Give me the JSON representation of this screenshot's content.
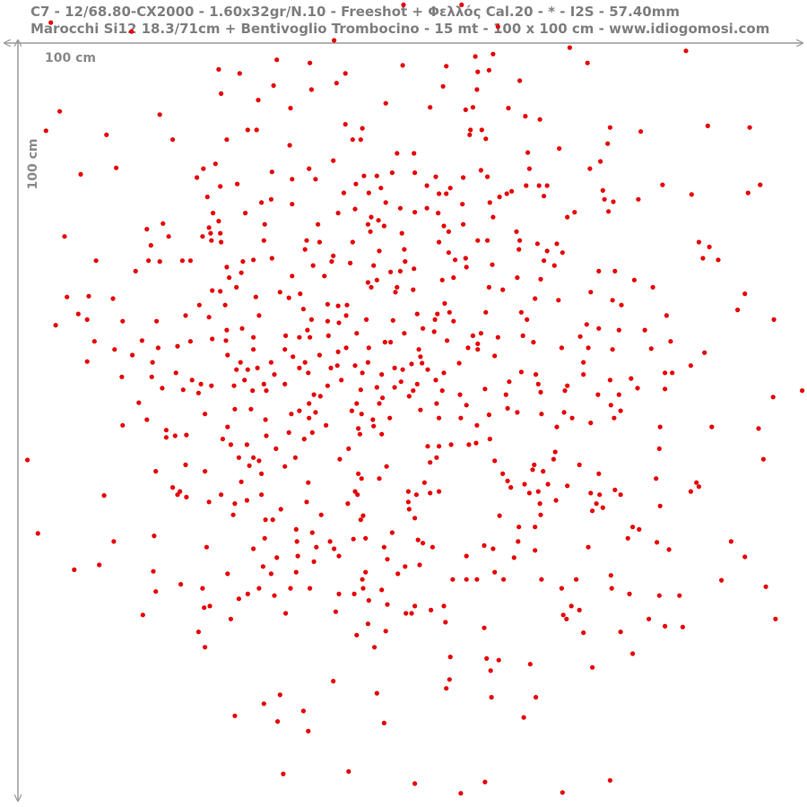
{
  "chart_data": {
    "type": "scatter",
    "title": "C7 - 12/68.80-CX2000 - 1.60x32gr/N.10 - Freeshot + Φελλός Cal.20 - * - I2S - 57.40mm",
    "subtitle": "Marocchi Si12 18.3/71cm + Bentivoglio Trombocino - 15 mt - 100 x 100 cm - www.idiogomosi.com",
    "x_label": "100 cm",
    "y_label": "100 cm",
    "xlim": [
      0,
      100
    ],
    "ylim": [
      100,
      0
    ],
    "color": "#e60000",
    "x": [
      50.0,
      57.2,
      6.3,
      16.3,
      61.7,
      41.4,
      70.6,
      85,
      58.9,
      61.1,
      34.3,
      38.4,
      49.9,
      55.3,
      72.8,
      27.1,
      29.7,
      42.8,
      59.2,
      60.6,
      41.7,
      54.9,
      64.4,
      33.9,
      27.4,
      38.6,
      59.1,
      32,
      47.8,
      36,
      57.7,
      58.6,
      63,
      7.4,
      19.8,
      53.3,
      65.1,
      66.9,
      42.8,
      58.3,
      59.7,
      75.6,
      87.7,
      92.9,
      5.7,
      30.7,
      31.8,
      44.9,
      13.2,
      21.4,
      28.1,
      43.7,
      44.7,
      79.4,
      58.2,
      60.2,
      35.9,
      75.3,
      69.3,
      49.2,
      51.3,
      41.3,
      65.4,
      26.7,
      25.2,
      14.4,
      38.3,
      65.6,
      73.1,
      74.4,
      33.7,
      48.6,
      51.4,
      10,
      45.1,
      46.7,
      59.6,
      24.4,
      54,
      57.4,
      60.4,
      36.2,
      39.1,
      44.1,
      52.9,
      65.2,
      66.8,
      67.8,
      82.1,
      94.2,
      29.4,
      92.7,
      27.3,
      55.8,
      47.2,
      85.7,
      74.7,
      63.4,
      42.6,
      45.7,
      54.4,
      55.3,
      33.6,
      25.7,
      61.9,
      62.8,
      67.4,
      74.9,
      76,
      79.1,
      32.4,
      36.2,
      47.8,
      57.3,
      60.7,
      52.9,
      49.6,
      44,
      41.9,
      51.4,
      54.3,
      71.2,
      75.4,
      26.4,
      30.4,
      46,
      46.9,
      61.1,
      70.3,
      20.2,
      27.1,
      25.9,
      18.2,
      26.1,
      27.3,
      32.8,
      45.6,
      47.6,
      55,
      57.4,
      39.4,
      64,
      49.8,
      55.6,
      45.9,
      8,
      20.9,
      25.1,
      26.2,
      27.4,
      32.7,
      38,
      39.6,
      54.4,
      59.2,
      60.4,
      64.4,
      66.6,
      69,
      86.6,
      87.9,
      18.7,
      43.7,
      50.1,
      64.3,
      67.8,
      69.7,
      37.8,
      41.3,
      47,
      55.6,
      56.4,
      57.7,
      33.7,
      87.1,
      89,
      11.9,
      18.4,
      19.8,
      22.6,
      23.6,
      30.1,
      31.4,
      41.1,
      43.4,
      46.3,
      50.2,
      51.3,
      57.8,
      61,
      67.4,
      68.7,
      28.1,
      38.8,
      16.8,
      29.9,
      48.4,
      49.6,
      74.2,
      76.2,
      28.4,
      36.2,
      40.2,
      46.7,
      45.6,
      54.8,
      56.2,
      64.1,
      67,
      78.6,
      80.9,
      46,
      29.3,
      26.3,
      27.3,
      34.7,
      49.2,
      49,
      51.2,
      60.6,
      62.3,
      73.2,
      92.3,
      8.3,
      11,
      14,
      31.7,
      35.8,
      37.2,
      40.6,
      41.9,
      55.1,
      66.3,
      69.2,
      75.9,
      24.7,
      27.9,
      43,
      77,
      91.4,
      9.7,
      10.8,
      37.6,
      42.9,
      51.7,
      54.2,
      55.7,
      60.2,
      64.6,
      82.6,
      23,
      25.9,
      32.1,
      38.6,
      40.6,
      42,
      45.4,
      48.7,
      53.9,
      56.2,
      65.3,
      95.9,
      6.9,
      15.2,
      19.4,
      72.7,
      74.2,
      76.7,
      79.9,
      28.1,
      30,
      52.4,
      53.8,
      38.1,
      35.4,
      37.1,
      40.7,
      44.2,
      50.1,
      58.6,
      59.6,
      61.7,
      64.8,
      71.9,
      31.4,
      11.7,
      17.6,
      23.6,
      26.3,
      28,
      38.4,
      47.7,
      48.4,
      55.4,
      59.2,
      66.1,
      83.1,
      14.2,
      19.6,
      22,
      31.4,
      35.3,
      42.9,
      45.7,
      51.9,
      58,
      59.2,
      69.6,
      72.9,
      75.9,
      80.7,
      87.3,
      16.4,
      28.2,
      36.3,
      39.6,
      41.9,
      52.1,
      61.3,
      10.8,
      18.9,
      29.8,
      33.6,
      37.8,
      41,
      45.6,
      51,
      52.3,
      56.9,
      72.3,
      37.1,
      41.8,
      44,
      48.9,
      49.9,
      29.3,
      30.7,
      31.9,
      53,
      85.6,
      64.6,
      21.8,
      34,
      38.2,
      44.9,
      47.3,
      55,
      66.4,
      72.3,
      82.4,
      83.3,
      15.1,
      18.8,
      23.8,
      24.9,
      30.3,
      32.7,
      42.3,
      49.7,
      51.7,
      54,
      63.1,
      66.7,
      75.6,
      78.2,
      20.1,
      22.7,
      26.2,
      29,
      31.3,
      33,
      35.3,
      40.6,
      44.7,
      46.7,
      48.9,
      51.2,
      54.8,
      60.1,
      70.3,
      70,
      79,
      82.4,
      99.4,
      24.6,
      38.9,
      39.7,
      47.4,
      50.7,
      57,
      62.7,
      67,
      74.1,
      76.7,
      95.8,
      17.2,
      38.3,
      44.2,
      47,
      54.1,
      57.8,
      62.9,
      75.7,
      29.1,
      31.1,
      37.1,
      39.1,
      43.6,
      52.1,
      69.9,
      76.9,
      18.2,
      25.4,
      36.1,
      44.8,
      64.1,
      67.1,
      76.1,
      32.9,
      38.3,
      46.2,
      48.3,
      54.4,
      57.1,
      60.6,
      70.9,
      73.2,
      15.2,
      28.2,
      40.4,
      46.3,
      44.4,
      59.1,
      69,
      81.8,
      88.2,
      94,
      35.8,
      38.7,
      44.6,
      47.3,
      20.6,
      20.6,
      23.1,
      21.7,
      33,
      27.6,
      60.7,
      59,
      58.1,
      37.7,
      28.6,
      30.6,
      53,
      54.4,
      55.9,
      43.2,
      81.7,
      68.8,
      34.2,
      3.4,
      94.6,
      29.6,
      31.4,
      32.1,
      36.6,
      42.1,
      54.1,
      61.3,
      23,
      30.9,
      35.3,
      47.9,
      53.3,
      66.2,
      68.6,
      71.8,
      19.3,
      25.4,
      32.4,
      44.4,
      62.3,
      66,
      67.3,
      74.2,
      44.8,
      47,
      62.9,
      81.3,
      86.3,
      29.9,
      38.2,
      52.6,
      65,
      67.9,
      86.6,
      21.4,
      63.3,
      70.3,
      76.2,
      12.9,
      22.3,
      22,
      23.1,
      27.4,
      32.4,
      44,
      44.3,
      50.6,
      51.6,
      53.3,
      54.4,
      65.6,
      66.7,
      73.2,
      74.3,
      76.9,
      85.6,
      25.9,
      29.1,
      30.6,
      38,
      43.1,
      50.6,
      68.9,
      73.9,
      66.9,
      74.7,
      73.4,
      81.8,
      50.7,
      34.8,
      28.9,
      39.8,
      45,
      51.4,
      61.9,
      67,
      32.9,
      33.8,
      44.7,
      64.3,
      66.3,
      78.4,
      79.2,
      4.7,
      36.7,
      38.7,
      48.6,
      77.8,
      14.1,
      19.1,
      32.8,
      36.8,
      40.9,
      43.8,
      45.3,
      51.8,
      52.4,
      53.6,
      60,
      64.2,
      81.4,
      90.6,
      25.6,
      31.4,
      39.2,
      41.4,
      47.6,
      61.1,
      66.3,
      72.9,
      82.9,
      34.3,
      36.9,
      38.9,
      42,
      48,
      57.8,
      63.7,
      92.3,
      9.2,
      12.3,
      32.6,
      45.3,
      50.2,
      52,
      61.3,
      19,
      28.2,
      33.6,
      36.7,
      44.9,
      49.3,
      56.1,
      57.8,
      59.1,
      62.4,
      67.1,
      71.4,
      75.7,
      89.4,
      22.4,
      25.1,
      36,
      38.4,
      42,
      43.9,
      45,
      47.3,
      69.6,
      75.8,
      94.9,
      19.3,
      30.7,
      32.1,
      78,
      81.7,
      84.2,
      29.6,
      34,
      45.7,
      48,
      51.4,
      53.4,
      55,
      70.8,
      26,
      25.3,
      71.8,
      35.4,
      41.6,
      50.3,
      51,
      69.8,
      70.2,
      80.4,
      28.6,
      17.7,
      96.1,
      45.6,
      55.2,
      82.4,
      84.6,
      60,
      24.6,
      44.2,
      47.8,
      72.3,
      76.9,
      25.4,
      46.4,
      78.4,
      55.8,
      60.3,
      61.8,
      65.7,
      60.8,
      73.4,
      41.3,
      55.7,
      55.3,
      46.7,
      34.7,
      60.9,
      66.4,
      32.7,
      37.6,
      29.1,
      64.9,
      34.4,
      47.6,
      38.2,
      43.2,
      35.1,
      75.6,
      51.4,
      60.1,
      57.1,
      69.7
    ],
    "values": [
      0.6,
      0.6,
      2.8,
      3.9,
      3.3,
      5.0,
      5.9,
      6.3,
      7.0,
      6.7,
      7.4,
      7.8,
      8.1,
      8.2,
      7.8,
      8.6,
      9.1,
      9.1,
      8.9,
      8.7,
      10.3,
      10.7,
      10,
      10.6,
      11.6,
      11.1,
      11.1,
      12.4,
      12.8,
      13.4,
      13.6,
      13.3,
      13.4,
      13.8,
      14.2,
      13.3,
      14.4,
      14.8,
      15.4,
      16.1,
      16.1,
      15.8,
      15.6,
      15.8,
      16.2,
      16.1,
      16.1,
      15.9,
      16.7,
      17.3,
      17.3,
      17.3,
      17.3,
      16.3,
      16.7,
      17.2,
      18,
      17.8,
      18.4,
      19,
      19,
      19.9,
      18.9,
      20.3,
      20.9,
      20.8,
      20.9,
      20.9,
      20.9,
      20,
      21.3,
      21.4,
      21.4,
      21.6,
      21.8,
      21.8,
      21.1,
      22,
      21.9,
      22,
      21.9,
      22.2,
      22.2,
      22.8,
      23,
      23,
      23,
      23,
      22.9,
      22.9,
      22.8,
      23.9,
      23.1,
      23.3,
      23.3,
      24.1,
      23.6,
      23.7,
      23.9,
      23.9,
      24,
      24,
      24.7,
      24.4,
      24.4,
      24,
      24.3,
      24.7,
      25,
      24.7,
      25.1,
      25.3,
      25.1,
      25.3,
      25.1,
      25.8,
      25.8,
      25.9,
      26.4,
      26.3,
      26.4,
      26.3,
      26.2,
      26.4,
      26.4,
      26.9,
      27.3,
      26.9,
      26.9,
      27.7,
      27.4,
      28.2,
      28.4,
      28.9,
      28.9,
      27.8,
      27.8,
      28,
      28,
      27.8,
      27.8,
      28.7,
      28.9,
      28.7,
      28.7,
      29.3,
      29.3,
      29.3,
      29.8,
      30,
      29.8,
      29.8,
      30,
      30,
      29.8,
      29.8,
      29.8,
      30.2,
      30.2,
      30,
      30.6,
      30.4,
      30,
      30.9,
      30.9,
      31.1,
      31.3,
      30.9,
      31.7,
      31.1,
      31.3,
      32.2,
      32,
      32,
      32,
      32.2,
      32.3,
      32.3,
      32.4,
      32.3,
      32.3,
      32.4,
      32.2,
      32.4,
      32.6,
      32.9,
      32.4,
      33.3,
      33.1,
      32.8,
      32.3,
      32.9,
      33.1,
      32.9,
      33.6,
      33.8,
      33.7,
      33.6,
      33.6,
      33.6,
      34.4,
      34.2,
      34.2,
      34.7,
      35,
      34.7,
      34.4,
      34.4,
      34.6,
      34.7,
      35.6,
      35.6,
      35.6,
      36,
      36.1,
      36.2,
      35.6,
      36.2,
      35.9,
      35.6,
      35.9,
      36.2,
      36.4,
      36.8,
      36.7,
      37,
      36.8,
      36.9,
      36.4,
      37.7,
      37.9,
      37.6,
      37,
      37.2,
      37.2,
      37.8,
      37.8,
      37.8,
      37.8,
      38.4,
      38.9,
      39.6,
      38.3,
      39.1,
      38.9,
      38.9,
      38.7,
      38.7,
      38.7,
      39.1,
      39.1,
      39.3,
      39.1,
      39.6,
      39.8,
      40,
      39.6,
      39.7,
      39.6,
      39.8,
      39.6,
      39.6,
      40.3,
      39.8,
      39.8,
      40.2,
      40.7,
      40.9,
      40.9,
      40.9,
      40.7,
      40.7,
      41.1,
      40.9,
      41.6,
      41.8,
      41.6,
      41.3,
      41.3,
      41.6,
      41.3,
      41.8,
      41.6,
      41.7,
      41.8,
      42.3,
      42.2,
      42.3,
      42,
      42.2,
      41.8,
      42.4,
      42.4,
      42.2,
      42.6,
      42.4,
      42.3,
      43.3,
      43.1,
      42.9,
      43.3,
      43.3,
      43.1,
      43.1,
      43.3,
      43.1,
      43.3,
      43.1,
      43.1,
      43.3,
      43.2,
      43.7,
      44,
      44,
      44.2,
      44,
      43.6,
      44.2,
      44.1,
      44.8,
      44.9,
      44.9,
      44.9,
      44.9,
      45.6,
      44.9,
      45.1,
      45,
      45,
      44.9,
      45.6,
      45.3,
      45.3,
      45.6,
      45.8,
      45.8,
      45.8,
      45.6,
      45.8,
      45.3,
      46.1,
      46.2,
      46.4,
      46.2,
      46.2,
      46.4,
      46.2,
      46.4,
      46.4,
      46.2,
      46.2,
      46.7,
      46.7,
      47.1,
      47.6,
      47.1,
      47.6,
      47.1,
      47.3,
      47.6,
      47.1,
      47.3,
      47.6,
      47.1,
      46.9,
      48.1,
      48.3,
      47.8,
      47.8,
      48.4,
      48.4,
      47.6,
      47.8,
      48.3,
      48,
      48,
      48.4,
      48.4,
      48.2,
      47.8,
      48.4,
      48.1,
      48.2,
      48.4,
      48.7,
      48.9,
      49.1,
      49.3,
      49.1,
      48.9,
      48.9,
      48.6,
      48.9,
      48.9,
      49.2,
      49.9,
      50,
      50,
      50,
      50,
      50.2,
      50.6,
      50.2,
      50.7,
      50.7,
      50.9,
      51.1,
      50.9,
      50.8,
      51.1,
      50.9,
      52,
      51.3,
      51.3,
      51.3,
      51.1,
      51.3,
      51.8,
      52,
      51.8,
      52,
      51.8,
      51.8,
      51.8,
      51.4,
      51.8,
      52.4,
      52.7,
      52.9,
      52.7,
      52.8,
      53.1,
      52.7,
      52.9,
      52.9,
      52.9,
      53.1,
      53.6,
      53.6,
      53.8,
      53.8,
      53.3,
      54.2,
      53.9,
      54,
      54,
      54.4,
      54.4,
      54.9,
      55.1,
      54.4,
      55.1,
      55.1,
      55.3,
      55.3,
      55.1,
      55.6,
      55.6,
      56,
      55.6,
      57,
      56.9,
      56.7,
      56.7,
      57.1,
      56.7,
      56.9,
      56.7,
      57.1,
      57.6,
      57.7,
      57.8,
      57.8,
      57.3,
      57.6,
      56.9,
      57.6,
      58.4,
      58.4,
      58.7,
      58.7,
      58.7,
      58.2,
      58.4,
      58.7,
      59.3,
      59.3,
      59.6,
      59.3,
      59.8,
      59.7,
      59.8,
      59.8,
      60,
      60,
      60.3,
      60.4,
      60.4,
      60.2,
      60.7,
      61.4,
      60.9,
      61.3,
      61.6,
      61.3,
      61.3,
      60.9,
      61.3,
      60.9,
      61.3,
      61.1,
      60.9,
      61.1,
      60.9,
      61.1,
      61.3,
      61.3,
      60.9,
      62.2,
      62.4,
      62,
      62.2,
      62.4,
      62.2,
      62,
      62.4,
      62.4,
      62.9,
      63.3,
      62.7,
      63.1,
      63.1,
      63.8,
      63.8,
      63.9,
      64.2,
      63.9,
      63.8,
      64.4,
      64.4,
      64.4,
      65.3,
      65.3,
      65.3,
      65.6,
      66.1,
      65.6,
      66,
      66,
      66.7,
      67.1,
      66.4,
      66.7,
      67.1,
      67.1,
      66.8,
      66.7,
      66.9,
      67.3,
      67.8,
      67.6,
      67.1,
      67.2,
      67.1,
      67.8,
      68,
      67.8,
      68,
      67.8,
      68,
      68.2,
      67.8,
      68.1,
      69.1,
      68.9,
      69.6,
      68.9,
      69.3,
      68.9,
      69.1,
      69,
      70.6,
      70,
      70.2,
      70.9,
      70.2,
      70,
      70.9,
      70.8,
      71.1,
      71.1,
      70.9,
      71.8,
      71.1,
      71.8,
      71.8,
      71.8,
      71.8,
      71.8,
      71.8,
      71.3,
      71.9,
      72.4,
      72.9,
      72.9,
      72.9,
      73.6,
      73.6,
      72.9,
      73.1,
      72.9,
      72.9,
      72.7,
      73.3,
      73.6,
      72.9,
      73.6,
      73.8,
      73.8,
      74.2,
      73.8,
      74.4,
      74.9,
      75.1,
      75.6,
      75.1,
      75.1,
      75.1,
      75.3,
      75.6,
      76,
      75.8,
      76,
      76,
      76.2,
      76.7,
      76.7,
      76.7,
      76.2,
      76.7,
      77.3,
      77.1,
      77.6,
      77.7,
      77.8,
      78.3,
      78.7,
      78.2,
      78.4,
      78.3,
      80.2,
      80.2,
      81,
      81.4,
      81.6,
      81.8,
      82.3,
      83.1,
      82.7,
      84.4,
      84.2,
      85.3,
      85.9,
      86.1,
      86.4,
      86.4,
      87.2,
      88.1,
      88.7,
      88.9,
      89.4,
      89.6,
      90.6,
      95.6,
      95.9,
      96.7,
      97.1,
      96.9,
      98.3,
      98.2
    ]
  }
}
